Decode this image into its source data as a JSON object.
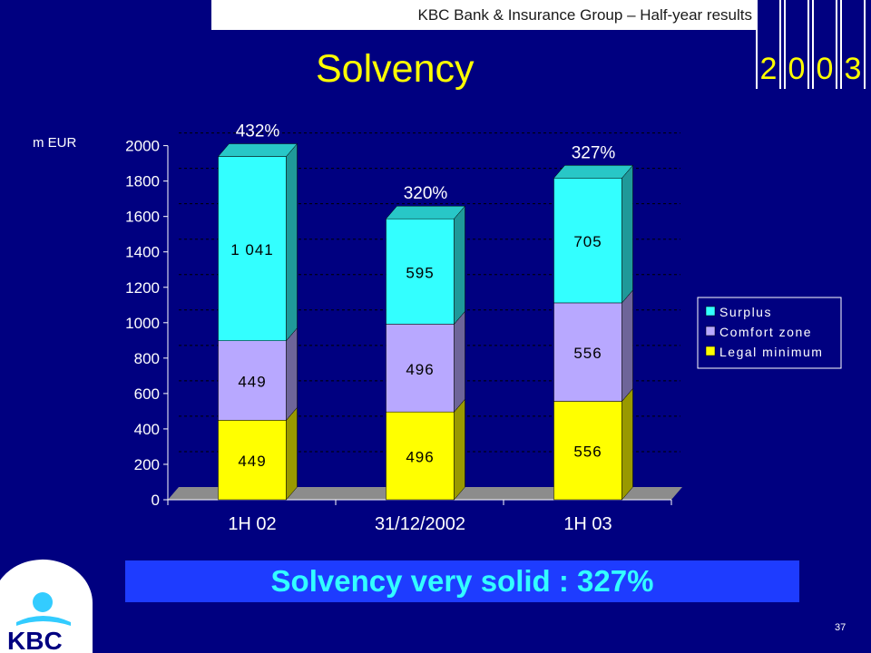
{
  "header": {
    "title": "KBC Bank & Insurance Group – Half-year results",
    "year_digits": [
      "2",
      "0",
      "0",
      "3"
    ]
  },
  "slide": {
    "title": "Solvency",
    "callout": "Solvency very solid : 327%",
    "page_number": "37"
  },
  "logo": {
    "text": "KBC"
  },
  "colors": {
    "surplus": "#33ffff",
    "comfort": "#b8a8ff",
    "legal": "#ffff00",
    "background": "#000080"
  },
  "chart_data": {
    "type": "bar",
    "stacked": true,
    "ylabel": "m EUR",
    "ylim": [
      0,
      2000
    ],
    "yticks": [
      0,
      200,
      400,
      600,
      800,
      1000,
      1200,
      1400,
      1600,
      1800,
      2000
    ],
    "grid": true,
    "legend_position": "right",
    "categories": [
      "1H 02",
      "31/12/2002",
      "1H 03"
    ],
    "series": [
      {
        "name": "Legal minimum",
        "values": [
          449,
          496,
          556
        ],
        "labels": [
          "449",
          "496",
          "556"
        ]
      },
      {
        "name": "Comfort zone",
        "values": [
          449,
          496,
          556
        ],
        "labels": [
          "449",
          "496",
          "556"
        ]
      },
      {
        "name": "Surplus",
        "values": [
          1041,
          595,
          705
        ],
        "labels": [
          "1 041",
          "595",
          "705"
        ]
      }
    ],
    "legend_order": [
      "Surplus",
      "Comfort zone",
      "Legal minimum"
    ],
    "annotations": [
      "432%",
      "320%",
      "327%"
    ]
  }
}
